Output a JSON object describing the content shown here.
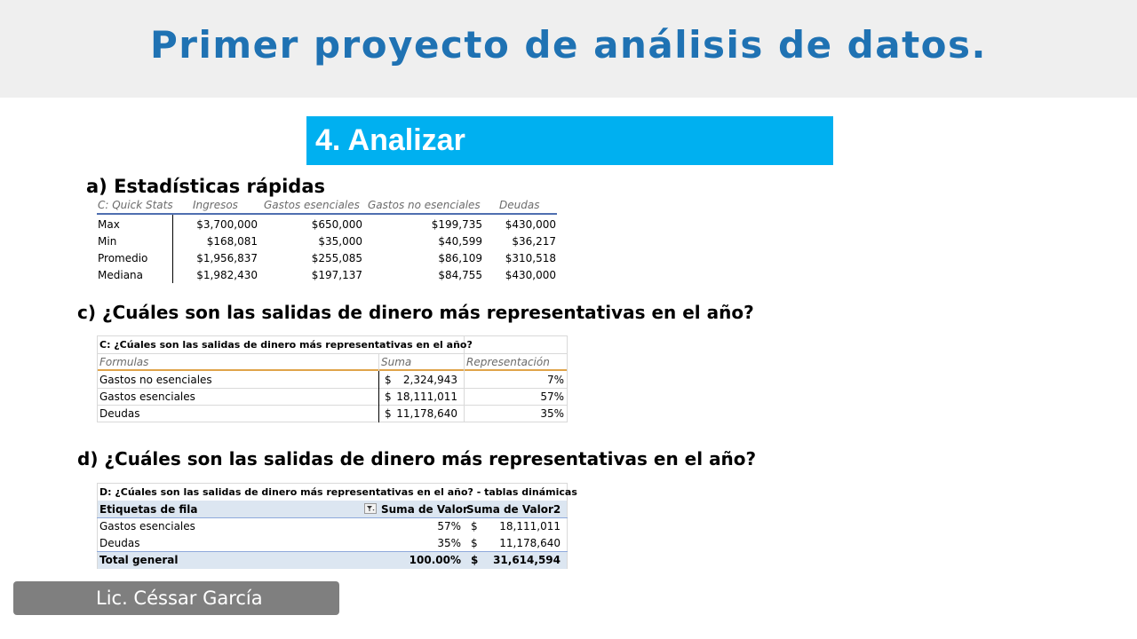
{
  "title": "Primer proyecto de análisis de datos.",
  "section": "4. Analizar",
  "heading_a": "a) Estadísticas rápidas",
  "quick_stats": {
    "headers": [
      "C: Quick Stats",
      "Ingresos",
      "Gastos esenciales",
      "Gastos no esenciales",
      "Deudas"
    ],
    "rows": [
      [
        "Max",
        "$3,700,000",
        "$650,000",
        "$199,735",
        "$430,000"
      ],
      [
        "Min",
        "$168,081",
        "$35,000",
        "$40,599",
        "$36,217"
      ],
      [
        "Promedio",
        "$1,956,837",
        "$255,085",
        "$86,109",
        "$310,518"
      ],
      [
        "Mediana",
        "$1,982,430",
        "$197,137",
        "$84,755",
        "$430,000"
      ]
    ]
  },
  "heading_c": "c) ¿Cuáles son las salidas de dinero más representativas en el año?",
  "table_c": {
    "title": "C: ¿Cúales son las salidas de dinero más representativas en el año?",
    "headers": [
      "Formulas",
      "Suma",
      "Representación"
    ],
    "rows": [
      {
        "label": "Gastos no esenciales",
        "currency": "$",
        "sum": "2,324,943",
        "pct": "7%"
      },
      {
        "label": "Gastos esenciales",
        "currency": "$",
        "sum": "18,111,011",
        "pct": "57%"
      },
      {
        "label": "Deudas",
        "currency": "$",
        "sum": "11,178,640",
        "pct": "35%"
      }
    ]
  },
  "heading_d": "d) ¿Cuáles son las salidas de dinero más representativas en el año?",
  "table_d": {
    "title": "D: ¿Cúales son las salidas de dinero más representativas en el año? - tablas dinámicas",
    "headers": [
      "Etiquetas de fila",
      "Suma de Valor",
      "Suma de Valor2"
    ],
    "rows": [
      {
        "label": "Gastos esenciales",
        "v1": "57%",
        "currency": "$",
        "v2": "18,111,011"
      },
      {
        "label": "Deudas",
        "v1": "35%",
        "currency": "$",
        "v2": "11,178,640"
      }
    ],
    "total": {
      "label": "Total general",
      "v1": "100.00%",
      "currency": "$",
      "v2": "31,614,594"
    }
  },
  "footer": "Lic. Céssar García",
  "colors": {
    "title": "#1f72b3",
    "section_bg": "#00b0f0",
    "footer_bg": "#7f7f7f",
    "pivot_header_bg": "#dce6f1"
  },
  "icons": {
    "filter": "filter-icon"
  }
}
